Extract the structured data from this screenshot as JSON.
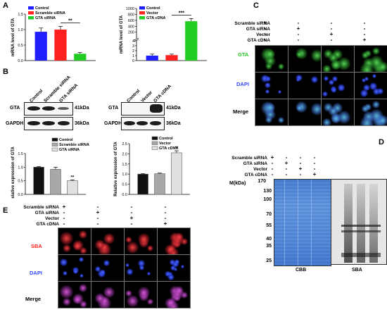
{
  "panels": {
    "A": "A",
    "B": "B",
    "C": "C",
    "D": "D",
    "E": "E"
  },
  "colors": {
    "control": "#1f1fff",
    "scramble": "#ff2020",
    "gta_sirna": "#22cc22",
    "vector": "#ff2020",
    "gta_cdna": "#22cc22",
    "western_black": "#111111",
    "western_grey": "#a8a8a8",
    "western_light": "#e0e0e0"
  },
  "chart_data": [
    {
      "type": "bar",
      "categories": [
        "Control",
        "Scramble siRNA",
        "GTA siRNA"
      ],
      "values": [
        0.93,
        1.0,
        0.22
      ],
      "errors": [
        0.12,
        0.1,
        0.04
      ],
      "ylabel": "mRNA level of GTA",
      "ylim": [
        0,
        1.5
      ],
      "yticks": [
        "0.0",
        "0.5",
        "1.0",
        "1.5"
      ],
      "legend": [
        "Control",
        "Scramble siRNA",
        "GTA siRNA"
      ],
      "significance": "**"
    },
    {
      "type": "bar",
      "categories": [
        "Control",
        "Vector",
        "GTA cDNA"
      ],
      "values": [
        1.0,
        1.1,
        570
      ],
      "errors": [
        0.3,
        0.2,
        90
      ],
      "ylabel": "mRNA level of GTA",
      "yticks": [
        "0",
        "1",
        "2",
        "3",
        "4",
        "200",
        "400",
        "600",
        "800",
        "1000"
      ],
      "axis_break": true,
      "legend": [
        "Control",
        "Vector",
        "GTA cDNA"
      ],
      "significance": "***"
    },
    {
      "type": "bar",
      "categories": [
        "Control",
        "Scramble siRNA",
        "GTA siRNA"
      ],
      "values": [
        1.0,
        0.92,
        0.5
      ],
      "errors": [
        0.02,
        0.08,
        0.03
      ],
      "ylabel": "Relative expression of GTA",
      "ylim": [
        0,
        1.5
      ],
      "yticks": [
        "0.0",
        "0.5",
        "1.0",
        "1.5"
      ],
      "legend": [
        "Control",
        "Scramble siRNA",
        "GTA siRNA"
      ],
      "significance": "**"
    },
    {
      "type": "bar",
      "categories": [
        "Control",
        "Vector",
        "GTA cDNA"
      ],
      "values": [
        1.0,
        1.02,
        2.05
      ],
      "errors": [
        0.02,
        0.03,
        0.1
      ],
      "ylabel": "Relative expression of GTA",
      "ylim": [
        0,
        2.5
      ],
      "yticks": [
        "0.0",
        "0.5",
        "1.0",
        "1.5",
        "2.0",
        "2.5"
      ],
      "legend": [
        "Control",
        "Vector",
        "GTA cDNA"
      ],
      "significance": "**"
    }
  ],
  "blotB": {
    "lanes_left": [
      "Control",
      "Scramble siRNA",
      "GTA siRNA"
    ],
    "lanes_right": [
      "Control",
      "Vector",
      "GTA cDNA"
    ],
    "rows": [
      "GTA",
      "GAPDH"
    ],
    "sizes": [
      "41kDa",
      "36kDa"
    ]
  },
  "conditions": [
    "Scramble siRNA",
    "GTA siRNA",
    "Vector",
    "GTA cDNA"
  ],
  "signs": [
    [
      "+",
      "-",
      "-",
      "-"
    ],
    [
      "-",
      "+",
      "-",
      "-"
    ],
    [
      "-",
      "-",
      "+",
      "-"
    ],
    [
      "-",
      "-",
      "-",
      "+"
    ]
  ],
  "panelC": {
    "rows": [
      "GTA",
      "DAPI",
      "Merge"
    ]
  },
  "panelE": {
    "rows": [
      "SBA",
      "DAPI",
      "Merge"
    ]
  },
  "panelD": {
    "ylabel": "M(kDa)",
    "markers": [
      "170",
      "130",
      "100",
      "70",
      "55",
      "40",
      "35",
      "25"
    ],
    "left_label": "CBB",
    "right_label": "SBA"
  }
}
